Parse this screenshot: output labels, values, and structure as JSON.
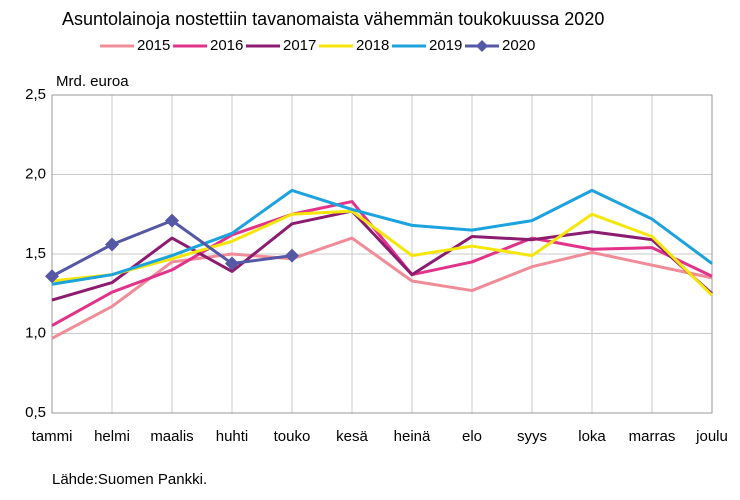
{
  "chart_data": {
    "type": "line",
    "title": "Asuntolainoja nostettiin tavanomaista vähemmän toukokuussa 2020",
    "y_label": "Mrd. euroa",
    "source": "Lähde:Suomen Pankki.",
    "categories": [
      "tammi",
      "helmi",
      "maalis",
      "huhti",
      "touko",
      "kesä",
      "heinä",
      "elo",
      "syys",
      "loka",
      "marras",
      "joulu"
    ],
    "series": [
      {
        "name": "2015",
        "color": "#f08c98",
        "values": [
          0.97,
          1.17,
          1.45,
          1.5,
          1.47,
          1.6,
          1.33,
          1.27,
          1.42,
          1.51,
          1.43,
          1.35
        ]
      },
      {
        "name": "2016",
        "color": "#e2338a",
        "values": [
          1.05,
          1.26,
          1.4,
          1.62,
          1.75,
          1.83,
          1.37,
          1.45,
          1.6,
          1.53,
          1.54,
          1.36
        ]
      },
      {
        "name": "2017",
        "color": "#8c1c70",
        "values": [
          1.21,
          1.32,
          1.6,
          1.39,
          1.69,
          1.77,
          1.37,
          1.61,
          1.59,
          1.64,
          1.59,
          1.25
        ]
      },
      {
        "name": "2018",
        "color": "#f5e60a",
        "values": [
          1.33,
          1.37,
          1.47,
          1.58,
          1.75,
          1.77,
          1.49,
          1.55,
          1.49,
          1.75,
          1.61,
          1.24
        ]
      },
      {
        "name": "2019",
        "color": "#1ca3dd",
        "values": [
          1.31,
          1.37,
          1.49,
          1.63,
          1.9,
          1.78,
          1.68,
          1.65,
          1.71,
          1.9,
          1.72,
          1.44
        ]
      },
      {
        "name": "2020",
        "color": "#5558a5",
        "marker": "diamond",
        "values": [
          1.36,
          1.56,
          1.71,
          1.44,
          1.49,
          null,
          null,
          null,
          null,
          null,
          null,
          null
        ]
      }
    ],
    "ylim": [
      0.5,
      2.5
    ],
    "yticks": [
      {
        "value": 0.5,
        "label": "0,5"
      },
      {
        "value": 1,
        "label": "1,0"
      },
      {
        "value": 1.5,
        "label": "1,5"
      },
      {
        "value": 2,
        "label": "2,0"
      },
      {
        "value": 2.5,
        "label": "2,5"
      }
    ],
    "grid": true
  }
}
